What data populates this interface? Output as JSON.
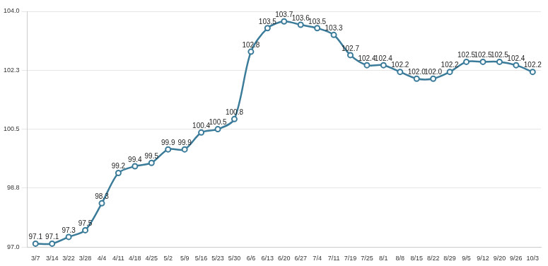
{
  "chart_data": {
    "type": "line",
    "categories": [
      "3/7",
      "3/14",
      "3/22",
      "3/28",
      "4/4",
      "4/11",
      "4/18",
      "4/25",
      "5/2",
      "5/9",
      "5/16",
      "5/23",
      "5/30",
      "6/6",
      "6/13",
      "6/20",
      "6/27",
      "7/4",
      "7/11",
      "7/19",
      "7/25",
      "8/1",
      "8/8",
      "8/15",
      "8/22",
      "8/29",
      "9/5",
      "9/12",
      "9/20",
      "9/26",
      "10/3"
    ],
    "values": [
      97.1,
      97.1,
      97.3,
      97.5,
      98.3,
      99.2,
      99.4,
      99.5,
      99.9,
      99.9,
      100.4,
      100.5,
      100.8,
      102.8,
      103.5,
      103.7,
      103.6,
      103.5,
      103.3,
      102.7,
      102.4,
      102.4,
      102.2,
      102.0,
      102.0,
      102.2,
      102.5,
      102.5,
      102.5,
      102.4,
      102.2
    ],
    "value_labels": [
      "97.1",
      "97.1",
      "97.3",
      "97.5",
      "98.3",
      "99.2",
      "99.4",
      "99.5",
      "99.9",
      "99.9",
      "100.4",
      "100.5",
      "100.8",
      "102.8",
      "103.5",
      "103.7",
      "103.6",
      "103.5",
      "103.3",
      "102.7",
      "102.4",
      "102.4",
      "102.2",
      "102.0",
      "102.0",
      "102.2",
      "102.5",
      "102.5",
      "102.5",
      "102.4",
      "102.2"
    ],
    "color": "#3b7b9a",
    "marker": "circle",
    "ylim": [
      97,
      104
    ],
    "yticks": [
      {
        "value": 97,
        "label": "97.0"
      },
      {
        "value": 98.75,
        "label": "98.8"
      },
      {
        "value": 100.5,
        "label": "100.5"
      },
      {
        "value": 102.25,
        "label": "102.3"
      },
      {
        "value": 104,
        "label": "104.0"
      }
    ],
    "grid": true,
    "data_labels": true
  }
}
